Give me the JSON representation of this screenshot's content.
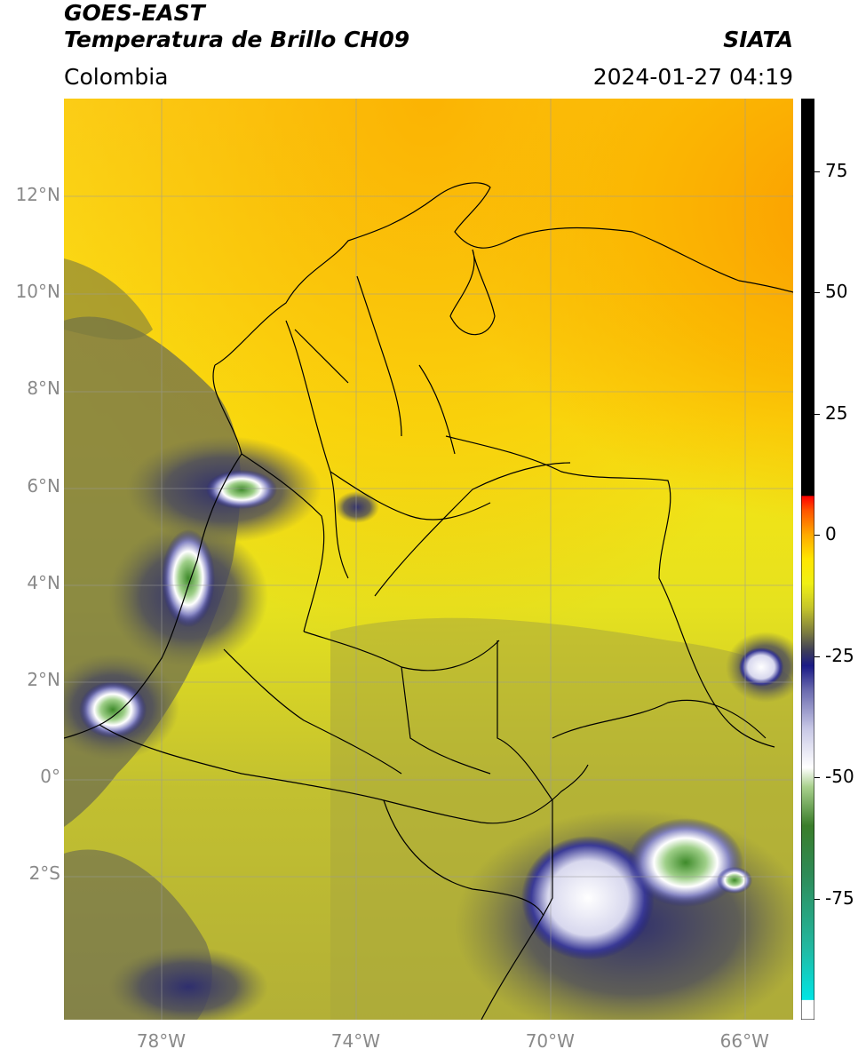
{
  "header": {
    "satellite": "GOES-EAST",
    "product": "Temperatura de Brillo CH09",
    "region": "Colombia",
    "agency": "SIATA",
    "datetime": "2024-01-27 04:19"
  },
  "axes": {
    "lat_labels": [
      "12°N",
      "10°N",
      "8°N",
      "6°N",
      "4°N",
      "2°N",
      "0°",
      "2°S"
    ],
    "lon_labels": [
      "78°W",
      "74°W",
      "70°W",
      "66°W"
    ]
  },
  "colorbar": {
    "tick_labels": [
      "75",
      "50",
      "25",
      "0",
      "-25",
      "-50",
      "-75"
    ],
    "tick_values": [
      75,
      50,
      25,
      0,
      -25,
      -50,
      -75
    ],
    "range": [
      -100,
      90
    ],
    "stops": [
      {
        "v": -100,
        "c": "#ffffff"
      },
      {
        "v": -96,
        "c": "#ffffff"
      },
      {
        "v": -95.9,
        "c": "#00e5e5"
      },
      {
        "v": -85,
        "c": "#22b8a0"
      },
      {
        "v": -70,
        "c": "#2e8b57"
      },
      {
        "v": -60,
        "c": "#3a7d2a"
      },
      {
        "v": -52,
        "c": "#a8d08c"
      },
      {
        "v": -48,
        "c": "#ffffff"
      },
      {
        "v": -40,
        "c": "#c8c8e6"
      },
      {
        "v": -32,
        "c": "#6a6aae"
      },
      {
        "v": -27,
        "c": "#1a1a86"
      },
      {
        "v": -24,
        "c": "#3c3c5a"
      },
      {
        "v": -20,
        "c": "#7e7e3e"
      },
      {
        "v": -15,
        "c": "#c6c62a"
      },
      {
        "v": -10,
        "c": "#f0f014"
      },
      {
        "v": -5,
        "c": "#ffe600"
      },
      {
        "v": 0,
        "c": "#ffaa00"
      },
      {
        "v": 5,
        "c": "#ff5500"
      },
      {
        "v": 8,
        "c": "#ff0000"
      },
      {
        "v": 8.1,
        "c": "#000000"
      },
      {
        "v": 90,
        "c": "#000000"
      }
    ]
  },
  "map": {
    "extent": {
      "lon": [
        -80,
        -65
      ],
      "lat": [
        -5,
        14
      ]
    },
    "grid": true,
    "colors": {
      "warm": "#ffaa00",
      "mid": "#ffe600",
      "cool": "#c6c62a",
      "cold": "#1a1a86",
      "coldest": "#3a7d2a"
    }
  }
}
